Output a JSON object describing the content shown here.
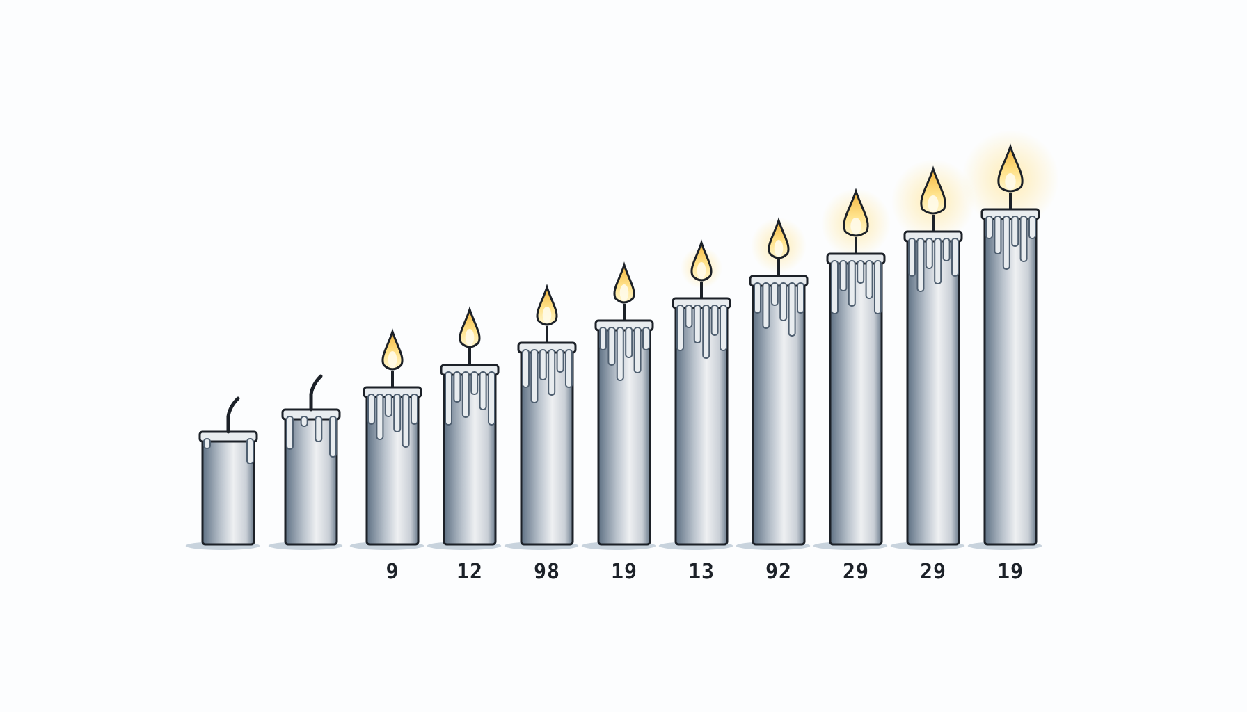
{
  "chart_data": {
    "type": "bar",
    "title": "",
    "xlabel": "",
    "ylabel": "",
    "bars": [
      {
        "value": 1,
        "label": "",
        "lit": false
      },
      {
        "value": 2,
        "label": "",
        "lit": false
      },
      {
        "value": 3,
        "label": "9",
        "lit": true
      },
      {
        "value": 4,
        "label": "12",
        "lit": true
      },
      {
        "value": 5,
        "label": "98",
        "lit": true
      },
      {
        "value": 6,
        "label": "19",
        "lit": true
      },
      {
        "value": 7,
        "label": "13",
        "lit": true
      },
      {
        "value": 8,
        "label": "92",
        "lit": true
      },
      {
        "value": 9,
        "label": "29",
        "lit": true
      },
      {
        "value": 10,
        "label": "29",
        "lit": true
      },
      {
        "value": 11,
        "label": "19",
        "lit": true
      }
    ],
    "colors": {
      "candle_light": "#eef0f2",
      "candle_mid": "#b9c2cc",
      "candle_shadow": "#5f7184",
      "drip": "#e8ecef",
      "flame_outer": "#f2b33c",
      "flame_inner": "#fff6cf",
      "glow": "#ffe9a8",
      "outline": "#1c2128"
    }
  }
}
